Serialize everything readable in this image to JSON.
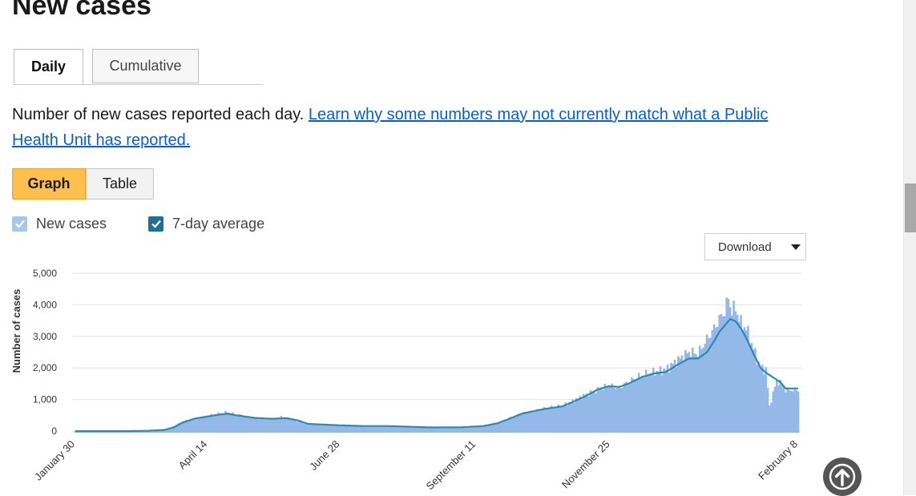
{
  "page": {
    "title": "New cases"
  },
  "tabs": [
    {
      "label": "Daily",
      "active": true
    },
    {
      "label": "Cumulative",
      "active": false
    }
  ],
  "description": {
    "text": "Number of new cases reported each day. ",
    "link_text": "Learn why some numbers may not currently match what a Public Health Unit has reported."
  },
  "view_toggle": {
    "graph_label": "Graph",
    "table_label": "Table",
    "selected": "Graph"
  },
  "legend": {
    "new_cases_label": "New cases",
    "avg_label": "7-day average",
    "new_cases_checked": true,
    "avg_checked": true
  },
  "download": {
    "label": "Download"
  },
  "colors": {
    "bar": "#94b8e8",
    "line": "#2b8bb0",
    "accent": "#fdc04e",
    "grid": "#e3e3e3"
  },
  "chart_data": {
    "type": "bar",
    "ylabel": "Number of cases",
    "ylim": [
      0,
      5000
    ],
    "yticks": [
      0,
      1000,
      2000,
      3000,
      4000,
      5000
    ],
    "ytick_labels": [
      "0",
      "1,000",
      "2,000",
      "3,000",
      "4,000",
      "5,000"
    ],
    "x_range": [
      "January 30",
      "February 8"
    ],
    "xtick_labels": [
      "January 30",
      "April 14",
      "June 28",
      "September 11",
      "November 25",
      "February 8"
    ],
    "series": [
      {
        "name": "New cases",
        "type": "bar",
        "keypoints": [
          [
            0,
            0
          ],
          [
            30,
            0
          ],
          [
            40,
            10
          ],
          [
            50,
            50
          ],
          [
            55,
            150
          ],
          [
            60,
            300
          ],
          [
            67,
            400
          ],
          [
            75,
            500
          ],
          [
            80,
            550
          ],
          [
            85,
            600
          ],
          [
            90,
            520
          ],
          [
            100,
            420
          ],
          [
            110,
            380
          ],
          [
            115,
            450
          ],
          [
            120,
            400
          ],
          [
            125,
            300
          ],
          [
            130,
            220
          ],
          [
            145,
            200
          ],
          [
            160,
            160
          ],
          [
            175,
            170
          ],
          [
            185,
            140
          ],
          [
            200,
            110
          ],
          [
            215,
            120
          ],
          [
            228,
            170
          ],
          [
            236,
            250
          ],
          [
            243,
            420
          ],
          [
            250,
            560
          ],
          [
            262,
            720
          ],
          [
            272,
            800
          ],
          [
            278,
            950
          ],
          [
            285,
            1150
          ],
          [
            292,
            1300
          ],
          [
            298,
            1450
          ],
          [
            304,
            1350
          ],
          [
            309,
            1560
          ],
          [
            317,
            1780
          ],
          [
            324,
            1880
          ],
          [
            330,
            1950
          ],
          [
            338,
            2300
          ],
          [
            343,
            2500
          ],
          [
            348,
            2450
          ],
          [
            353,
            2900
          ],
          [
            357,
            3250
          ],
          [
            360,
            3550
          ],
          [
            363,
            3800
          ],
          [
            365,
            4200
          ],
          [
            367,
            3800
          ],
          [
            369,
            3900
          ],
          [
            372,
            3400
          ],
          [
            375,
            3250
          ],
          [
            379,
            2600
          ],
          [
            383,
            2000
          ],
          [
            386,
            1950
          ],
          [
            388,
            780
          ],
          [
            390,
            1200
          ],
          [
            392,
            1600
          ],
          [
            395,
            1500
          ],
          [
            397,
            1300
          ]
        ]
      },
      {
        "name": "7-day average",
        "type": "line",
        "keypoints": [
          [
            0,
            0
          ],
          [
            30,
            0
          ],
          [
            40,
            8
          ],
          [
            50,
            40
          ],
          [
            55,
            120
          ],
          [
            60,
            270
          ],
          [
            67,
            400
          ],
          [
            75,
            470
          ],
          [
            80,
            520
          ],
          [
            85,
            550
          ],
          [
            90,
            500
          ],
          [
            100,
            420
          ],
          [
            110,
            390
          ],
          [
            118,
            410
          ],
          [
            125,
            330
          ],
          [
            130,
            230
          ],
          [
            145,
            190
          ],
          [
            160,
            160
          ],
          [
            175,
            160
          ],
          [
            185,
            140
          ],
          [
            200,
            115
          ],
          [
            215,
            120
          ],
          [
            228,
            160
          ],
          [
            236,
            250
          ],
          [
            243,
            400
          ],
          [
            250,
            560
          ],
          [
            262,
            700
          ],
          [
            272,
            780
          ],
          [
            278,
            920
          ],
          [
            285,
            1100
          ],
          [
            292,
            1320
          ],
          [
            298,
            1420
          ],
          [
            304,
            1400
          ],
          [
            309,
            1500
          ],
          [
            317,
            1720
          ],
          [
            324,
            1830
          ],
          [
            330,
            1870
          ],
          [
            338,
            2150
          ],
          [
            343,
            2300
          ],
          [
            348,
            2300
          ],
          [
            353,
            2500
          ],
          [
            357,
            2850
          ],
          [
            360,
            3150
          ],
          [
            363,
            3350
          ],
          [
            366,
            3550
          ],
          [
            369,
            3480
          ],
          [
            372,
            3250
          ],
          [
            375,
            2950
          ],
          [
            379,
            2450
          ],
          [
            383,
            2000
          ],
          [
            386,
            1850
          ],
          [
            390,
            1700
          ],
          [
            394,
            1550
          ],
          [
            397,
            1350
          ]
        ]
      }
    ]
  },
  "scroll_top": {
    "icon": "arrow-up-icon"
  }
}
